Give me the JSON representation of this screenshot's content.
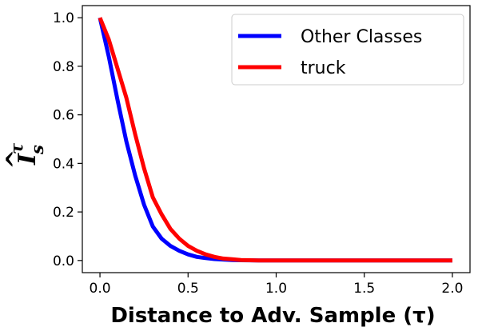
{
  "chart_data": {
    "type": "line",
    "title": "",
    "xlabel": "Distance to Adv. Sample (τ)",
    "ylabel": "I_s^τ",
    "ylabel_parts": {
      "base": "I",
      "sub": "s",
      "sup": "τ",
      "hat": "^"
    },
    "xlim": [
      -0.1,
      2.1
    ],
    "ylim": [
      -0.05,
      1.05
    ],
    "xticks": [
      "0.0",
      "0.5",
      "1.0",
      "1.5",
      "2.0"
    ],
    "yticks": [
      "0.0",
      "0.2",
      "0.4",
      "0.6",
      "0.8",
      "1.0"
    ],
    "legend_position": "top-right",
    "grid": false,
    "series": [
      {
        "name": "Other Classes",
        "color": "#0000ff",
        "x": [
          0.0,
          0.05,
          0.1,
          0.15,
          0.2,
          0.25,
          0.3,
          0.35,
          0.4,
          0.45,
          0.5,
          0.55,
          0.6,
          0.65,
          0.7,
          0.75,
          0.8,
          0.9,
          1.0,
          1.2,
          1.5,
          2.0
        ],
        "y": [
          1.0,
          0.84,
          0.66,
          0.49,
          0.35,
          0.23,
          0.14,
          0.09,
          0.06,
          0.04,
          0.025,
          0.015,
          0.01,
          0.006,
          0.004,
          0.002,
          0.001,
          0.0,
          0.0,
          0.0,
          0.0,
          0.0
        ]
      },
      {
        "name": "truck",
        "color": "#ff0000",
        "x": [
          0.0,
          0.05,
          0.1,
          0.15,
          0.2,
          0.25,
          0.3,
          0.35,
          0.4,
          0.45,
          0.5,
          0.55,
          0.6,
          0.65,
          0.7,
          0.75,
          0.8,
          0.9,
          1.0,
          1.2,
          1.5,
          2.0
        ],
        "y": [
          1.0,
          0.91,
          0.79,
          0.67,
          0.52,
          0.38,
          0.26,
          0.19,
          0.13,
          0.09,
          0.06,
          0.04,
          0.025,
          0.015,
          0.008,
          0.005,
          0.002,
          0.0,
          0.0,
          0.0,
          0.0,
          0.0
        ]
      }
    ]
  }
}
